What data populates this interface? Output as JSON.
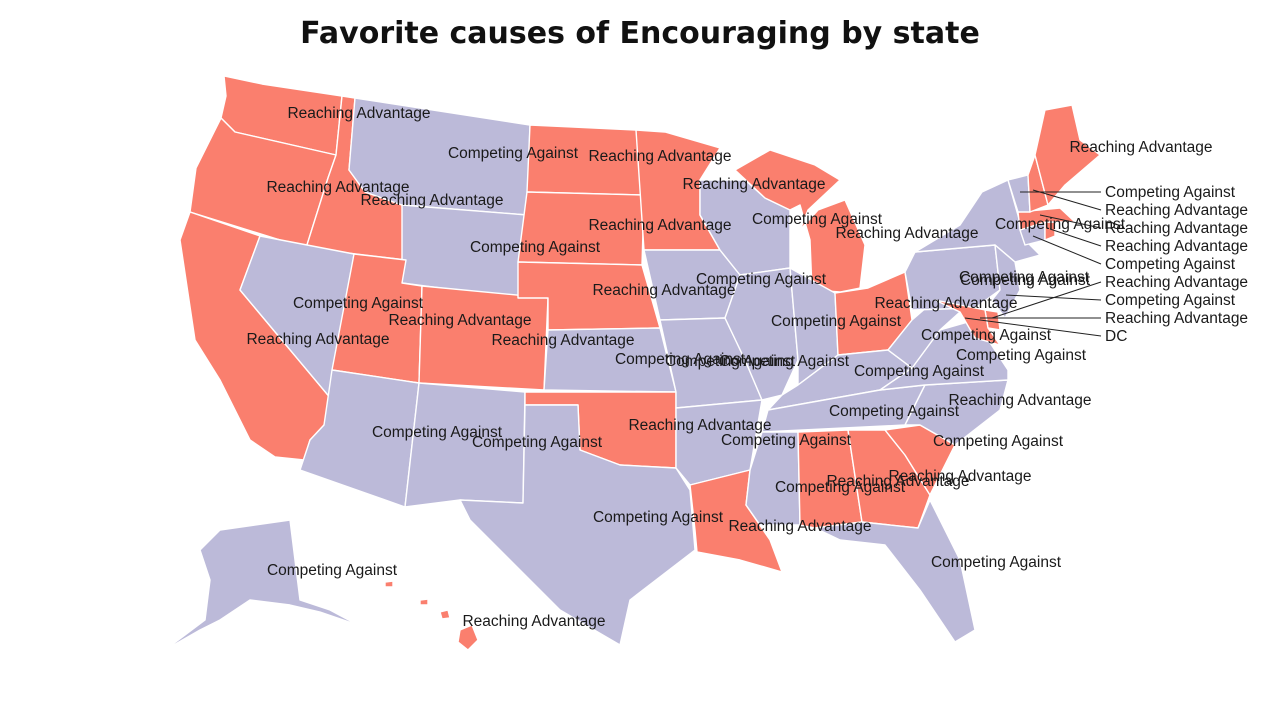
{
  "title": "Favorite causes of Encouraging by state",
  "colors": {
    "Reaching Advantage": "#fa7f6e",
    "Competing Against": "#bcbad9",
    "border": "#ffffff",
    "leader": "#222222"
  },
  "states": [
    {
      "id": "WA",
      "label": "Reaching Advantage"
    },
    {
      "id": "OR",
      "label": "Reaching Advantage"
    },
    {
      "id": "CA",
      "label": "Reaching Advantage"
    },
    {
      "id": "ID",
      "label": "Reaching Advantage"
    },
    {
      "id": "NV",
      "label": "Competing Against"
    },
    {
      "id": "MT",
      "label": "Competing Against"
    },
    {
      "id": "WY",
      "label": "Competing Against"
    },
    {
      "id": "UT",
      "label": "Reaching Advantage"
    },
    {
      "id": "AZ",
      "label": "Competing Against"
    },
    {
      "id": "CO",
      "label": "Reaching Advantage"
    },
    {
      "id": "NM",
      "label": "Competing Against"
    },
    {
      "id": "ND",
      "label": "Reaching Advantage"
    },
    {
      "id": "SD",
      "label": "Reaching Advantage"
    },
    {
      "id": "NE",
      "label": "Reaching Advantage"
    },
    {
      "id": "KS",
      "label": "Competing Against"
    },
    {
      "id": "OK",
      "label": "Reaching Advantage"
    },
    {
      "id": "TX",
      "label": "Competing Against"
    },
    {
      "id": "MN",
      "label": "Reaching Advantage"
    },
    {
      "id": "IA",
      "label": "Competing Against"
    },
    {
      "id": "MO",
      "label": "Competing Against"
    },
    {
      "id": "AR",
      "label": "Competing Against"
    },
    {
      "id": "LA",
      "label": "Reaching Advantage"
    },
    {
      "id": "WI",
      "label": "Competing Against"
    },
    {
      "id": "IL",
      "label": "Competing Against"
    },
    {
      "id": "MI",
      "label": "Reaching Advantage"
    },
    {
      "id": "IN",
      "label": "Competing Against"
    },
    {
      "id": "OH",
      "label": "Reaching Advantage"
    },
    {
      "id": "KY",
      "label": "Competing Against"
    },
    {
      "id": "TN",
      "label": "Competing Against"
    },
    {
      "id": "MS",
      "label": "Competing Against"
    },
    {
      "id": "AL",
      "label": "Reaching Advantage"
    },
    {
      "id": "GA",
      "label": "Reaching Advantage"
    },
    {
      "id": "FL",
      "label": "Competing Against"
    },
    {
      "id": "SC",
      "label": "Reaching Advantage"
    },
    {
      "id": "NC",
      "label": "Competing Against"
    },
    {
      "id": "VA",
      "label": "Competing Against"
    },
    {
      "id": "WV",
      "label": "Competing Against"
    },
    {
      "id": "PA",
      "label": "Competing Against"
    },
    {
      "id": "NY",
      "label": "Competing Against"
    },
    {
      "id": "NJ",
      "label": "Competing Against"
    },
    {
      "id": "DE",
      "label": "Reaching Advantage"
    },
    {
      "id": "MD",
      "label": "Reaching Advantage"
    },
    {
      "id": "DC",
      "label": "DC"
    },
    {
      "id": "CT",
      "label": "Competing Against"
    },
    {
      "id": "RI",
      "label": "Reaching Advantage"
    },
    {
      "id": "MA",
      "label": "Reaching Advantage"
    },
    {
      "id": "VT",
      "label": "Competing Against"
    },
    {
      "id": "NH",
      "label": "Reaching Advantage"
    },
    {
      "id": "ME",
      "label": "Reaching Advantage"
    },
    {
      "id": "AK",
      "label": "Competing Against"
    },
    {
      "id": "HI",
      "label": "Reaching Advantage"
    }
  ]
}
